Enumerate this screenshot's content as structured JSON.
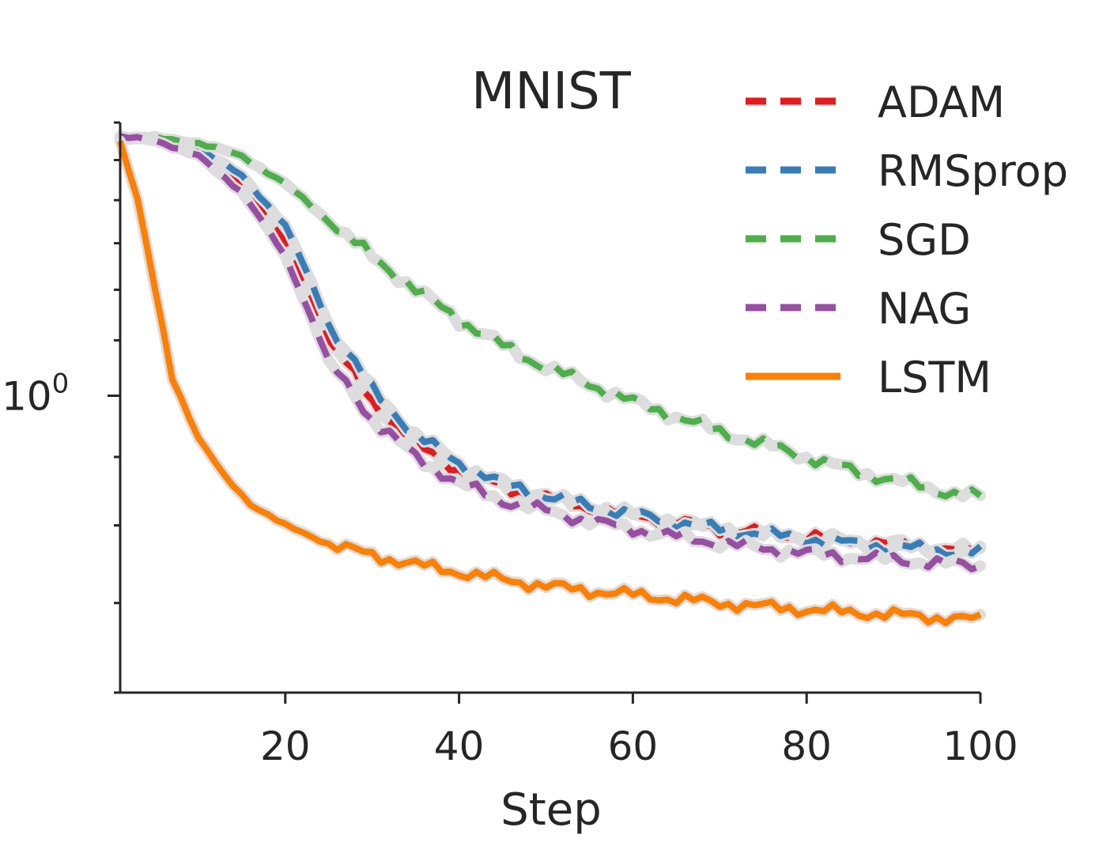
{
  "chart_data": {
    "type": "line",
    "title": "MNIST",
    "xlabel": "Step",
    "ylabel": "",
    "xlim": [
      1,
      100
    ],
    "ylim": [
      0.6,
      1.6
    ],
    "yscale": "log",
    "x_ticks": [
      20,
      40,
      60,
      80,
      100
    ],
    "y_major_ticks": [
      1.0
    ],
    "y_major_tick_labels": [
      "10",
      "0"
    ],
    "grid": false,
    "legend_position": "top-right",
    "series": [
      {
        "name": "ADAM",
        "color": "#e41a1c",
        "style": "dashed",
        "x": [
          1,
          5,
          10,
          15,
          20,
          25,
          30,
          35,
          40,
          45,
          50,
          55,
          60,
          65,
          70,
          75,
          80,
          85,
          90,
          95,
          100
        ],
        "y": [
          1.56,
          1.555,
          1.52,
          1.44,
          1.3,
          1.1,
          0.99,
          0.92,
          0.88,
          0.855,
          0.84,
          0.825,
          0.815,
          0.805,
          0.795,
          0.79,
          0.785,
          0.78,
          0.775,
          0.77,
          0.765
        ]
      },
      {
        "name": "RMSprop",
        "color": "#377eb8",
        "style": "dashed",
        "x": [
          1,
          5,
          10,
          15,
          20,
          25,
          30,
          35,
          40,
          45,
          50,
          55,
          60,
          65,
          70,
          75,
          80,
          85,
          90,
          95,
          100
        ],
        "y": [
          1.56,
          1.555,
          1.53,
          1.46,
          1.34,
          1.13,
          1.01,
          0.935,
          0.89,
          0.86,
          0.842,
          0.827,
          0.815,
          0.805,
          0.795,
          0.788,
          0.782,
          0.776,
          0.771,
          0.767,
          0.763
        ]
      },
      {
        "name": "SGD",
        "color": "#4daf4a",
        "style": "dashed",
        "x": [
          1,
          5,
          10,
          15,
          20,
          25,
          30,
          35,
          40,
          45,
          50,
          55,
          60,
          65,
          70,
          75,
          80,
          85,
          90,
          95,
          100
        ],
        "y": [
          1.56,
          1.558,
          1.545,
          1.51,
          1.44,
          1.35,
          1.27,
          1.2,
          1.14,
          1.09,
          1.05,
          1.02,
          0.99,
          0.965,
          0.94,
          0.92,
          0.9,
          0.88,
          0.865,
          0.85,
          0.84
        ]
      },
      {
        "name": "NAG",
        "color": "#984ea3",
        "style": "dashed",
        "x": [
          1,
          5,
          10,
          15,
          20,
          25,
          30,
          35,
          40,
          45,
          50,
          55,
          60,
          65,
          70,
          75,
          80,
          85,
          90,
          95,
          100
        ],
        "y": [
          1.56,
          1.553,
          1.51,
          1.42,
          1.27,
          1.06,
          0.96,
          0.9,
          0.86,
          0.835,
          0.82,
          0.806,
          0.795,
          0.785,
          0.776,
          0.769,
          0.763,
          0.758,
          0.754,
          0.75,
          0.746
        ]
      },
      {
        "name": "LSTM",
        "color": "#ff7f00",
        "style": "solid",
        "x": [
          1,
          3,
          5,
          7,
          10,
          13,
          16,
          20,
          25,
          30,
          35,
          40,
          45,
          50,
          55,
          60,
          65,
          70,
          75,
          80,
          85,
          90,
          95,
          100
        ],
        "y": [
          1.55,
          1.4,
          1.2,
          1.03,
          0.93,
          0.87,
          0.83,
          0.8,
          0.775,
          0.76,
          0.748,
          0.738,
          0.729,
          0.721,
          0.715,
          0.71,
          0.705,
          0.7,
          0.696,
          0.692,
          0.689,
          0.686,
          0.683,
          0.68
        ]
      }
    ]
  }
}
